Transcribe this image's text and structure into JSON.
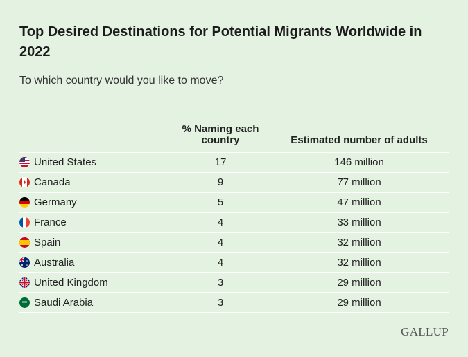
{
  "title": "Top Desired Destinations for Potential Migrants Worldwide in 2022",
  "subtitle": "To which country would you like to move?",
  "chart_data": {
    "type": "table",
    "columns": [
      "",
      "% Naming each country",
      "Estimated number of adults"
    ],
    "rows": [
      {
        "country": "United States",
        "flag": "us-flag",
        "pct": "17",
        "adults": "146 million"
      },
      {
        "country": "Canada",
        "flag": "canada-flag",
        "pct": "9",
        "adults": "77 million"
      },
      {
        "country": "Germany",
        "flag": "germany-flag",
        "pct": "5",
        "adults": "47 million"
      },
      {
        "country": "France",
        "flag": "france-flag",
        "pct": "4",
        "adults": "33 million"
      },
      {
        "country": "Spain",
        "flag": "spain-flag",
        "pct": "4",
        "adults": "32 million"
      },
      {
        "country": "Australia",
        "flag": "australia-flag",
        "pct": "4",
        "adults": "32 million"
      },
      {
        "country": "United Kingdom",
        "flag": "uk-flag",
        "pct": "3",
        "adults": "29 million"
      },
      {
        "country": "Saudi Arabia",
        "flag": "saudi-flag",
        "pct": "3",
        "adults": "29 million"
      }
    ]
  },
  "logo": "GALLUP",
  "colors": {
    "background": "#e4f2e2",
    "divider": "#ffffff"
  }
}
